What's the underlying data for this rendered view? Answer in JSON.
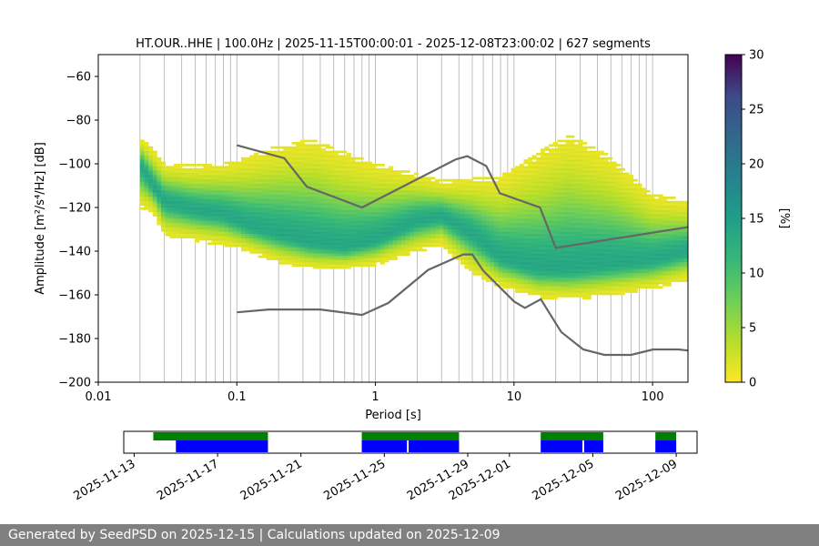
{
  "chart_data": [
    {
      "type": "heatmap",
      "title": "HT.OUR..HHE | 100.0Hz | 2025-11-15T00:00:01 - 2025-12-08T23:00:02 | 627 segments",
      "xlabel": "Period [s]",
      "ylabel": "Amplitude [m²/s⁴/Hz] [dB]",
      "x_scale": "log",
      "xlim": [
        0.01,
        180
      ],
      "ylim": [
        -200,
        -50
      ],
      "x_ticks": [
        0.01,
        0.1,
        1,
        10,
        100
      ],
      "x_tick_labels": [
        "0.01",
        "0.1",
        "1",
        "10",
        "100"
      ],
      "y_ticks": [
        -200,
        -180,
        -160,
        -140,
        -120,
        -100,
        -80,
        -60
      ],
      "y_tick_labels": [
        "−200",
        "−180",
        "−160",
        "−140",
        "−120",
        "−100",
        "−80",
        "−60"
      ],
      "grid": "vertical",
      "colorbar": {
        "label": "[%]",
        "colormap": "viridis_r",
        "range": [
          0,
          30
        ],
        "ticks": [
          0,
          5,
          10,
          15,
          20,
          25,
          30
        ],
        "tick_labels": [
          "0",
          "5",
          "10",
          "15",
          "20",
          "25",
          "30"
        ]
      },
      "psd_envelope": [
        {
          "period": 0.02,
          "lower": -120,
          "upper": -88,
          "mode": -100
        },
        {
          "period": 0.025,
          "lower": -122,
          "upper": -94,
          "mode": -110
        },
        {
          "period": 0.03,
          "lower": -133,
          "upper": -100,
          "mode": -117
        },
        {
          "period": 0.05,
          "lower": -135,
          "upper": -101,
          "mode": -121
        },
        {
          "period": 0.08,
          "lower": -137,
          "upper": -100,
          "mode": -123
        },
        {
          "period": 0.12,
          "lower": -140,
          "upper": -97,
          "mode": -128
        },
        {
          "period": 0.2,
          "lower": -145,
          "upper": -92,
          "mode": -132
        },
        {
          "period": 0.35,
          "lower": -148,
          "upper": -89,
          "mode": -136
        },
        {
          "period": 0.6,
          "lower": -148,
          "upper": -95,
          "mode": -138
        },
        {
          "period": 1,
          "lower": -146,
          "upper": -100,
          "mode": -135
        },
        {
          "period": 2,
          "lower": -140,
          "upper": -105,
          "mode": -126
        },
        {
          "period": 3,
          "lower": -137,
          "upper": -108,
          "mode": -124
        },
        {
          "period": 5,
          "lower": -150,
          "upper": -107,
          "mode": -132
        },
        {
          "period": 8,
          "lower": -156,
          "upper": -106,
          "mode": -143
        },
        {
          "period": 15,
          "lower": -161,
          "upper": -95,
          "mode": -148
        },
        {
          "period": 25,
          "lower": -162,
          "upper": -87,
          "mode": -148
        },
        {
          "period": 50,
          "lower": -160,
          "upper": -97,
          "mode": -146
        },
        {
          "period": 100,
          "lower": -157,
          "upper": -114,
          "mode": -144
        },
        {
          "period": 180,
          "lower": -153,
          "upper": -117,
          "mode": -140
        }
      ],
      "noise_models": [
        {
          "name": "upper",
          "points": [
            [
              0.1,
              -91.5
            ],
            [
              0.22,
              -97.4
            ],
            [
              0.32,
              -110.5
            ],
            [
              0.8,
              -120
            ],
            [
              3.8,
              -98
            ],
            [
              4.6,
              -96.5
            ],
            [
              6.3,
              -101
            ],
            [
              7.9,
              -113.5
            ],
            [
              15.4,
              -120
            ],
            [
              20,
              -138.5
            ],
            [
              180,
              -129
            ]
          ]
        },
        {
          "name": "lower",
          "points": [
            [
              0.1,
              -168
            ],
            [
              0.17,
              -166.7
            ],
            [
              0.4,
              -166.7
            ],
            [
              0.8,
              -169.2
            ],
            [
              1.24,
              -163.7
            ],
            [
              2.4,
              -148.6
            ],
            [
              4.3,
              -141.5
            ],
            [
              5,
              -141.5
            ],
            [
              6,
              -149
            ],
            [
              10,
              -163
            ],
            [
              12,
              -166
            ],
            [
              15.6,
              -162
            ],
            [
              21.9,
              -177
            ],
            [
              31.6,
              -185
            ],
            [
              45,
              -187.5
            ],
            [
              70,
              -187.5
            ],
            [
              101,
              -185
            ],
            [
              154,
              -185
            ],
            [
              180,
              -185.5
            ]
          ]
        }
      ]
    },
    {
      "type": "timeline",
      "date_range": [
        "2025-11-12T12:00",
        "2025-12-10T00:00"
      ],
      "tick_labels": [
        "2025-11-13",
        "2025-11-17",
        "2025-11-21",
        "2025-11-25",
        "2025-11-29",
        "2025-12-01",
        "2025-12-05",
        "2025-12-09"
      ],
      "tick_dates": [
        "2025-11-13",
        "2025-11-17",
        "2025-11-21",
        "2025-11-25",
        "2025-11-29",
        "2025-12-01",
        "2025-12-05",
        "2025-12-09"
      ],
      "colors": {
        "data": "#008000",
        "used": "#0000ff"
      },
      "data_available": [
        [
          "2025-11-13T22:00",
          "2025-11-19T10:00"
        ],
        [
          "2025-11-23T22:00",
          "2025-11-28T14:00"
        ],
        [
          "2025-12-02T12:00",
          "2025-12-05T12:00"
        ],
        [
          "2025-12-08T00:00",
          "2025-12-09T00:00"
        ]
      ],
      "psd_used": [
        [
          "2025-11-15T00:00",
          "2025-11-19T10:00"
        ],
        [
          "2025-11-23T22:00",
          "2025-11-26T02:00"
        ],
        [
          "2025-11-26T04:00",
          "2025-11-28T14:00"
        ],
        [
          "2025-12-02T12:00",
          "2025-12-04T12:00"
        ],
        [
          "2025-12-04T14:00",
          "2025-12-05T12:00"
        ],
        [
          "2025-12-08T00:00",
          "2025-12-09T00:00"
        ]
      ]
    }
  ],
  "footer": {
    "text": "Generated by SeedPSD on 2025-12-15 | Calculations updated on 2025-12-09"
  }
}
